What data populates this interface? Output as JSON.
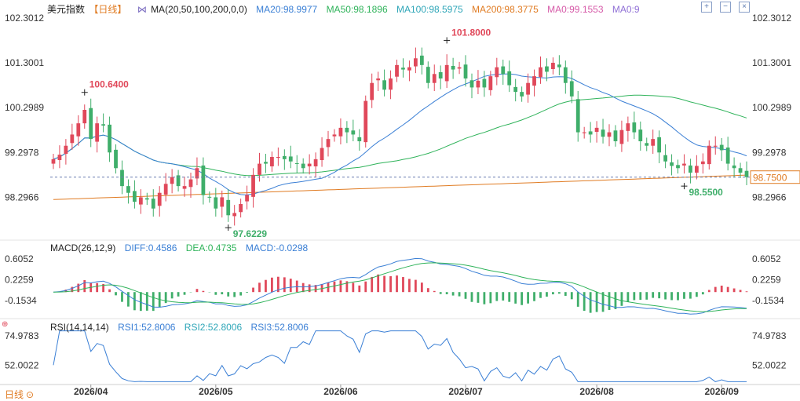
{
  "header": {
    "symbol": "美元指数",
    "period": "【日线】",
    "ma_label": "MA(20,50,100,200,0,0)",
    "ma_values": [
      {
        "text": "MA20:98.9977",
        "color": "#3a7fd5"
      },
      {
        "text": "MA50:98.1896",
        "color": "#2fb35a"
      },
      {
        "text": "MA100:98.5975",
        "color": "#2ea6b8"
      },
      {
        "text": "MA200:98.3775",
        "color": "#e07b22"
      },
      {
        "text": "MA0:99.1553",
        "color": "#d65aa8"
      },
      {
        "text": "MA0:9",
        "color": "#8f6fd6"
      }
    ]
  },
  "toolbar_icons": [
    "plus-square-icon",
    "minus-square-icon",
    "close-square-icon"
  ],
  "macd_header": {
    "label": "MACD(26,12,9)",
    "diff": "DIFF:0.4586",
    "dea": "DEA:0.4735",
    "macd": "MACD:-0.0298"
  },
  "rsi_header": {
    "label": "RSI(14,14,14)",
    "rsi1": "RSI1:52.8006",
    "rsi2": "RSI2:52.8006",
    "rsi3": "RSI3:52.8006"
  },
  "period_button": "日线",
  "colors": {
    "up": "#e0485a",
    "down": "#3fae6a",
    "ma20": "#3a7fd5",
    "ma50": "#2fb35a",
    "ma200": "#e07b22",
    "dea": "#2fb35a",
    "diff": "#3a7fd5",
    "rsi": "#3a7fd5"
  },
  "chart_data": [
    {
      "type": "candlestick",
      "y_ticks": [
        "102.3012",
        "101.3001",
        "100.2989",
        "99.2978",
        "98.2966"
      ],
      "y_tick_values": [
        102.3012,
        101.3001,
        100.2989,
        99.2978,
        98.2966
      ],
      "ylim": [
        97.45,
        102.35
      ],
      "x_ticks": [
        "2026/04",
        "2026/05",
        "2026/06",
        "2026/07",
        "2026/08",
        "2026/09"
      ],
      "x_tick_index": [
        6,
        26,
        46,
        66,
        87,
        107
      ],
      "current_price": "98.7500",
      "current_price_value": 98.75,
      "annotations": [
        {
          "text": "100.6400",
          "index": 5,
          "value": 100.64
        },
        {
          "text": "97.6229",
          "index": 28,
          "value": 97.6229
        },
        {
          "text": "101.8000",
          "index": 63,
          "value": 101.8
        },
        {
          "text": "98.5500",
          "index": 101,
          "value": 98.55
        }
      ],
      "closes": [
        99.15,
        99.25,
        99.45,
        99.7,
        99.95,
        100.25,
        99.6,
        99.95,
        99.9,
        99.3,
        98.95,
        98.55,
        98.4,
        98.2,
        98.3,
        98.25,
        98.05,
        98.4,
        98.6,
        98.75,
        98.55,
        98.55,
        98.7,
        98.95,
        98.35,
        98.3,
        98.05,
        98.3,
        97.9,
        97.95,
        98.15,
        98.35,
        98.8,
        99.05,
        99.05,
        99.2,
        99.2,
        99.15,
        99.1,
        99.05,
        98.95,
        99.05,
        99.15,
        99.4,
        99.6,
        99.7,
        99.85,
        99.75,
        99.7,
        99.55,
        100.45,
        100.85,
        100.95,
        100.7,
        100.95,
        101.25,
        101.15,
        101.2,
        101.4,
        101.25,
        100.85,
        101.05,
        100.95,
        101.25,
        101.15,
        101.2,
        100.95,
        100.75,
        100.9,
        100.75,
        101.0,
        101.2,
        101.05,
        100.8,
        100.65,
        100.55,
        100.85,
        101.0,
        101.2,
        101.1,
        101.3,
        101.2,
        100.85,
        100.55,
        99.75,
        99.75,
        99.7,
        99.85,
        99.65,
        99.75,
        99.55,
        99.8,
        99.95,
        99.75,
        99.55,
        99.45,
        99.6,
        99.3,
        99.1,
        99.0,
        98.95,
        99.05,
        98.85,
        99.0,
        99.1,
        99.45,
        99.45,
        99.35,
        99.05,
        98.95,
        98.85,
        98.75
      ],
      "macd": {
        "y_ticks": [
          "0.6052",
          "0.2259",
          "-0.1534"
        ],
        "y_tick_values": [
          0.6052,
          0.2259,
          -0.1534
        ],
        "ylim": [
          -0.4,
          0.78
        ]
      },
      "rsi": {
        "y_ticks": [
          "74.9783",
          "52.0022"
        ],
        "y_tick_values": [
          74.9783,
          52.0022
        ],
        "ylim": [
          38,
          80
        ]
      }
    }
  ]
}
